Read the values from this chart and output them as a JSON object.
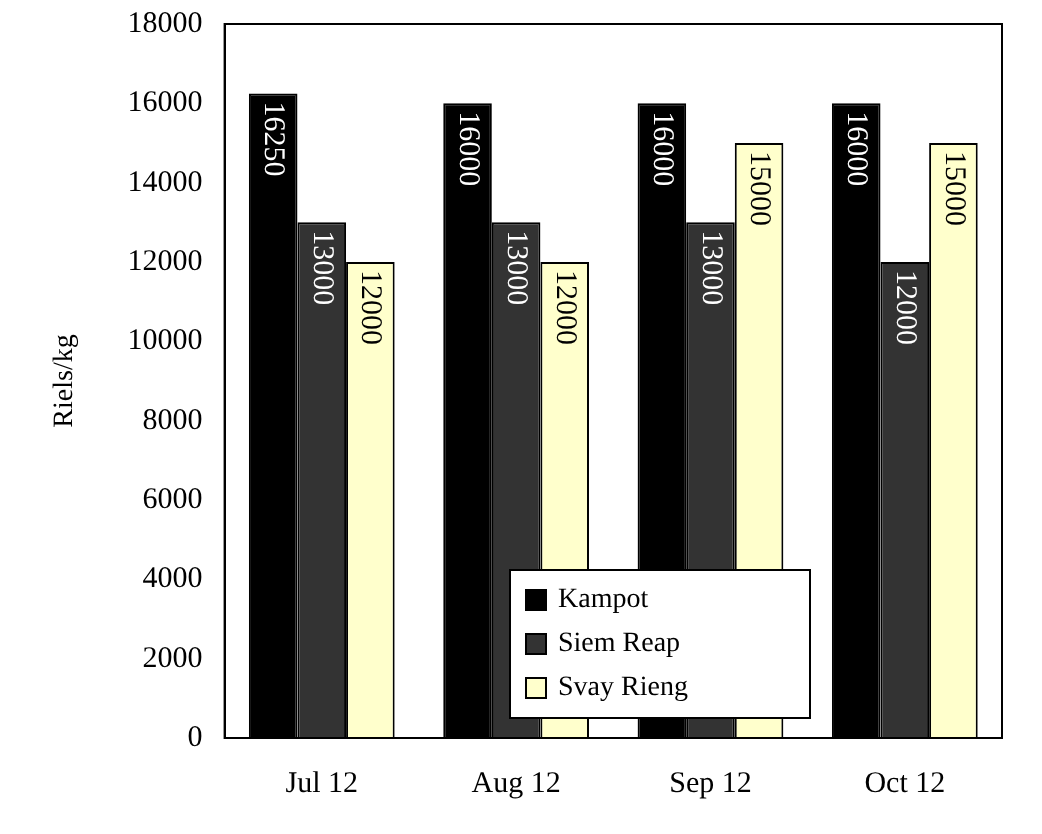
{
  "chart_data": {
    "type": "bar",
    "ylabel": "Riels/kg",
    "categories": [
      "Jul 12",
      "Aug 12",
      "Sep 12",
      "Oct 12"
    ],
    "series": [
      {
        "name": "Kampot",
        "color": "#000000",
        "values": [
          16250,
          16000,
          16000,
          16000
        ]
      },
      {
        "name": "Siem Reap",
        "color": "#333333",
        "values": [
          13000,
          13000,
          13000,
          12000
        ]
      },
      {
        "name": "Svay Rieng",
        "color": "#ffffcc",
        "values": [
          12000,
          12000,
          15000,
          15000
        ]
      }
    ],
    "ylim": [
      0,
      18000
    ],
    "yticks": [
      0,
      2000,
      4000,
      6000,
      8000,
      10000,
      12000,
      14000,
      16000,
      18000
    ],
    "grid": false,
    "legend": "bottom right",
    "data_labels": true
  }
}
